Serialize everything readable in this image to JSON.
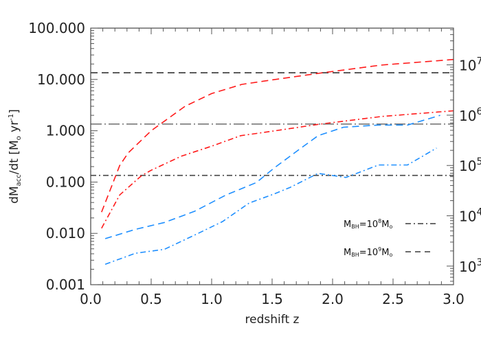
{
  "chart_data": {
    "type": "line",
    "xlabel": "redshift  z",
    "ylabel": {
      "main": "dM",
      "sub": "acc",
      "mid": "/dt  [M",
      "sun": "o",
      "unit": " yr",
      "exp": "-1",
      "end": "]"
    },
    "xlim": [
      0,
      3
    ],
    "ylim": [
      0.001,
      100
    ],
    "yscale": "log",
    "right_ylim": [
      427,
      53700000
    ],
    "right_yscale": "log",
    "x_ticks": [
      "0.0",
      "0.5",
      "1.0",
      "1.5",
      "2.0",
      "2.5",
      "3.0"
    ],
    "x_tick_values": [
      0,
      0.5,
      1,
      1.5,
      2,
      2.5,
      3
    ],
    "y_ticks": [
      "100.000",
      "10.000",
      "1.000",
      "0.100",
      "0.010",
      "0.001"
    ],
    "y_tick_values": [
      100,
      10,
      1,
      0.1,
      0.01,
      0.001
    ],
    "right_y_ticks": [
      {
        "base": "10",
        "exp": "7",
        "value": 10000000
      },
      {
        "base": "10",
        "exp": "6",
        "value": 1000000
      },
      {
        "base": "10",
        "exp": "5",
        "value": 100000
      },
      {
        "base": "10",
        "exp": "4",
        "value": 10000
      },
      {
        "base": "10",
        "exp": "3",
        "value": 1000
      }
    ],
    "grid": false,
    "colors": {
      "red": "#ff1a1a",
      "blue": "#1e8fff",
      "reference": "#444444"
    },
    "series": [
      {
        "color": "red",
        "style": "dashed",
        "x": [
          0.09,
          0.24,
          0.31,
          0.5,
          0.62,
          0.78,
          1.0,
          1.25,
          1.5,
          1.9,
          2.4,
          3.0
        ],
        "y": [
          0.026,
          0.21,
          0.37,
          1.0,
          1.6,
          3.0,
          5.3,
          8.0,
          9.8,
          13.3,
          19,
          24.5
        ]
      },
      {
        "color": "red",
        "style": "dashdot",
        "x": [
          0.09,
          0.24,
          0.42,
          0.5,
          0.75,
          1.0,
          1.24,
          1.5,
          1.88,
          2.41,
          3.0
        ],
        "y": [
          0.0126,
          0.056,
          0.133,
          0.17,
          0.32,
          0.5,
          0.8,
          0.98,
          1.33,
          1.9,
          2.45
        ]
      },
      {
        "color": "blue",
        "style": "dashed",
        "x": [
          0.12,
          0.37,
          0.61,
          0.86,
          1.12,
          1.37,
          1.52,
          1.71,
          1.88,
          2.09,
          2.38,
          2.62,
          2.89
        ],
        "y": [
          0.0079,
          0.012,
          0.0163,
          0.027,
          0.056,
          0.098,
          0.19,
          0.41,
          0.8,
          1.17,
          1.29,
          1.29,
          2.0
        ]
      },
      {
        "color": "blue",
        "style": "dashdot",
        "x": [
          0.12,
          0.37,
          0.61,
          0.88,
          1.09,
          1.31,
          1.52,
          1.65,
          1.88,
          2.11,
          2.38,
          2.62,
          2.86
        ],
        "y": [
          0.0025,
          0.0041,
          0.0049,
          0.0098,
          0.017,
          0.039,
          0.059,
          0.079,
          0.148,
          0.123,
          0.215,
          0.215,
          0.46
        ]
      }
    ],
    "reference_lines": [
      {
        "y": 13.5,
        "style": "dashed"
      },
      {
        "y": 1.35,
        "style": "longdashdot"
      },
      {
        "y": 0.135,
        "style": "dashdot"
      }
    ],
    "legend": {
      "placement": "bottom-right",
      "entries": [
        {
          "pre": "M",
          "sub": "BH",
          "eq": "=10",
          "exp": "8",
          "post": "M",
          "sun": "o",
          "style": "dashdot"
        },
        {
          "pre": "M",
          "sub": "BH",
          "eq": "=10",
          "exp": "9",
          "post": "M",
          "sun": "o",
          "style": "dashed"
        }
      ]
    }
  }
}
